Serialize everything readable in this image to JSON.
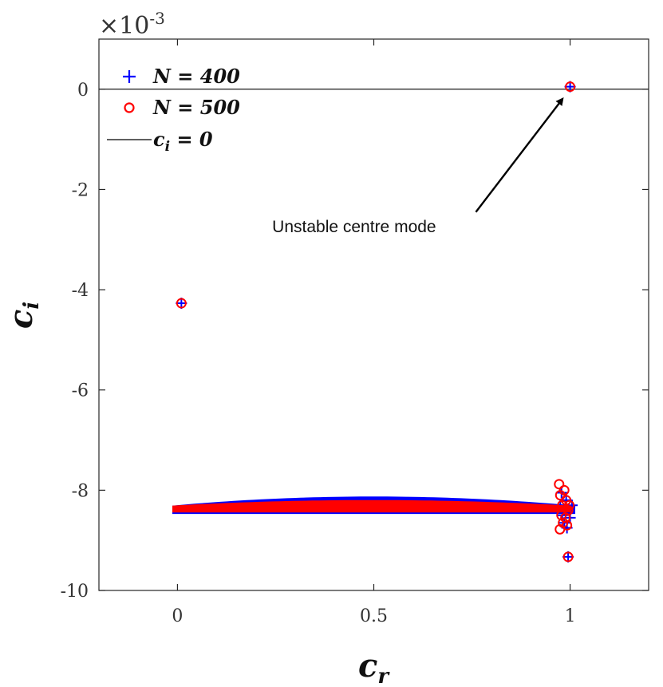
{
  "chart_data": {
    "type": "scatter",
    "xlabel": "c_r",
    "ylabel": "c_i",
    "xlim": [
      -0.2,
      1.2
    ],
    "ylim": [
      -10,
      1
    ],
    "y_exponent": "×10^-3",
    "y_exponent_prefix": "×10",
    "y_exponent_power": "-3",
    "x_ticks": [
      {
        "value": 0,
        "label": "0"
      },
      {
        "value": 0.5,
        "label": "0.5"
      },
      {
        "value": 1,
        "label": "1"
      }
    ],
    "y_ticks": [
      {
        "value": 0,
        "label": "0"
      },
      {
        "value": -2,
        "label": "-2"
      },
      {
        "value": -4,
        "label": "-4"
      },
      {
        "value": -6,
        "label": "-6"
      },
      {
        "value": -8,
        "label": "-8"
      },
      {
        "value": -10,
        "label": "-10"
      }
    ],
    "grid": false,
    "legend_position": "top-left",
    "reference_line": {
      "name": "c_i = 0",
      "y": 0,
      "color": "#000000"
    },
    "series": [
      {
        "name": "N = 400",
        "marker": "plus",
        "color": "#0000ff",
        "isolated_points": [
          {
            "x": 1.0,
            "y": 0.05
          },
          {
            "x": 0.01,
            "y": -4.27
          },
          {
            "x": 0.995,
            "y": -9.33
          }
        ],
        "spectrum_band": {
          "x_start": -0.01,
          "x_end": 1.01,
          "y_center": -8.33,
          "y_upper_peak": -8.15,
          "y_lower": -8.45
        },
        "cluster_near_x1": [
          {
            "x": 0.975,
            "y": -8.3
          },
          {
            "x": 0.98,
            "y": -8.5
          },
          {
            "x": 0.985,
            "y": -8.65
          },
          {
            "x": 0.99,
            "y": -8.2
          },
          {
            "x": 0.995,
            "y": -8.4
          },
          {
            "x": 1.0,
            "y": -8.55
          },
          {
            "x": 0.978,
            "y": -8.05
          },
          {
            "x": 0.992,
            "y": -8.75
          },
          {
            "x": 1.005,
            "y": -8.3
          },
          {
            "x": 0.985,
            "y": -8.4
          }
        ]
      },
      {
        "name": "N = 500",
        "marker": "circle",
        "color": "#ff0000",
        "isolated_points": [
          {
            "x": 1.0,
            "y": 0.05
          },
          {
            "x": 0.01,
            "y": -4.27
          },
          {
            "x": 0.995,
            "y": -9.33
          }
        ],
        "spectrum_band": {
          "x_start": -0.01,
          "x_end": 1.0,
          "y_center": -8.33,
          "y_upper_peak": -8.22,
          "y_lower": -8.42
        },
        "cluster_near_x1": [
          {
            "x": 0.972,
            "y": -7.88
          },
          {
            "x": 0.975,
            "y": -8.1
          },
          {
            "x": 0.98,
            "y": -8.3
          },
          {
            "x": 0.978,
            "y": -8.5
          },
          {
            "x": 0.982,
            "y": -8.65
          },
          {
            "x": 0.974,
            "y": -8.78
          },
          {
            "x": 0.99,
            "y": -8.2
          },
          {
            "x": 0.995,
            "y": -8.4
          },
          {
            "x": 0.988,
            "y": -8.55
          },
          {
            "x": 0.998,
            "y": -8.3
          },
          {
            "x": 0.985,
            "y": -8.0
          },
          {
            "x": 0.992,
            "y": -8.7
          }
        ]
      }
    ],
    "annotations": [
      {
        "text": "Unstable centre mode",
        "text_at": {
          "x": 0.45,
          "y": -2.85
        },
        "arrow_from": {
          "x": 0.76,
          "y": -2.45
        },
        "arrow_to": {
          "x": 0.98,
          "y": -0.2
        }
      }
    ]
  }
}
